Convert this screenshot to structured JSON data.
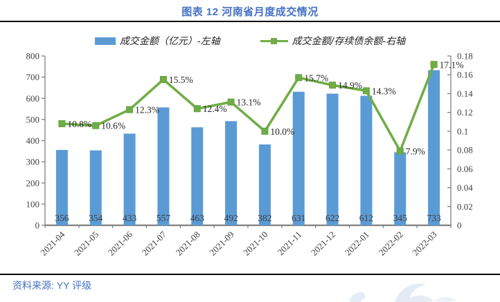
{
  "header": {
    "title": "图表 12 河南省月度成交情况"
  },
  "legend": {
    "bar_label": "成交金额（亿元）-左轴",
    "line_label": "成交金额/存续债余额-右轴"
  },
  "footer": {
    "source": "资料来源: YY 评级"
  },
  "colors": {
    "bar": "#5B9BD5",
    "line": "#70AD47",
    "accent_blue": "#4472C4",
    "axis": "#808080",
    "text": "#404040",
    "watermark": "#c9d7ec"
  },
  "chart_data": {
    "type": "bar",
    "subtype": "combo-bar-line",
    "title": "图表 12 河南省月度成交情况",
    "categories": [
      "2021-04",
      "2021-05",
      "2021-06",
      "2021-07",
      "2021-08",
      "2021-09",
      "2021-10",
      "2021-11",
      "2021-12",
      "2022-01",
      "2022-02",
      "2022-03"
    ],
    "series": [
      {
        "name": "成交金额（亿元）-左轴",
        "type": "bar",
        "axis": "left",
        "color": "#5B9BD5",
        "values": [
          356,
          354,
          433,
          557,
          463,
          492,
          382,
          631,
          622,
          612,
          345,
          733
        ],
        "value_labels": [
          "356",
          "354",
          "433",
          "557",
          "463",
          "492",
          "382",
          "631",
          "622",
          "612",
          "345",
          "733"
        ]
      },
      {
        "name": "成交金额/存续债余额-右轴",
        "type": "line",
        "axis": "right",
        "color": "#70AD47",
        "values": [
          0.108,
          0.106,
          0.123,
          0.155,
          0.124,
          0.131,
          0.1,
          0.157,
          0.149,
          0.143,
          0.079,
          0.171
        ],
        "value_labels": [
          "10.8%",
          "10.6%",
          "12.3%",
          "15.5%",
          "12.4%",
          "13.1%",
          "10.0%",
          "15.7%",
          "14.9%",
          "14.3%",
          "7.9%",
          "17.1%"
        ]
      }
    ],
    "left_axis": {
      "min": 0,
      "max": 800,
      "step": 100,
      "ticks": [
        "0",
        "100",
        "200",
        "300",
        "400",
        "500",
        "600",
        "700",
        "800"
      ]
    },
    "right_axis": {
      "min": 0,
      "max": 0.18,
      "step": 0.02,
      "ticks": [
        "0",
        "0.02",
        "0.04",
        "0.06",
        "0.08",
        "0.1",
        "0.12",
        "0.14",
        "0.16",
        "0.18"
      ]
    },
    "grid": false,
    "legend_position": "top",
    "xlabel": "",
    "ylabel": ""
  }
}
